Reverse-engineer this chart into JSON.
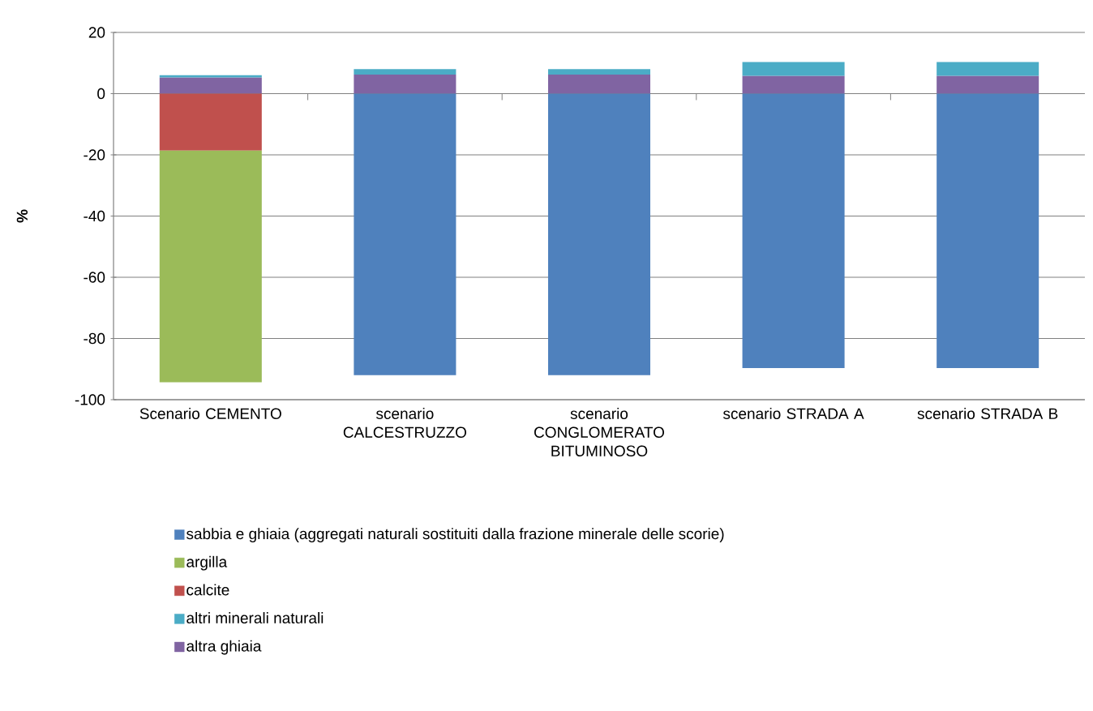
{
  "chart_data": {
    "type": "bar",
    "stacked": true,
    "ylabel": "%",
    "categories": [
      "Scenario CEMENTO",
      "scenario CALCESTRUZZO",
      "scenario CONGLOMERATO BITUMINOSO",
      "scenario STRADA A",
      "scenario STRADA B"
    ],
    "series": [
      {
        "name": "altra ghiaia",
        "color": "#8064a2",
        "values": [
          5.3,
          6.2,
          6.2,
          5.8,
          5.8
        ]
      },
      {
        "name": "altri minerali naturali",
        "color": "#4bacc6",
        "values": [
          0.7,
          1.8,
          1.8,
          4.5,
          4.5
        ]
      },
      {
        "name": "calcite",
        "color": "#c0504d",
        "values": [
          -18.6,
          0,
          0,
          0,
          0
        ]
      },
      {
        "name": "argilla",
        "color": "#9bbb59",
        "values": [
          -75.7,
          0,
          0,
          0,
          0
        ]
      },
      {
        "name": "sabbia e ghiaia (aggregati naturali sostituiti dalla frazione minerale delle scorie)",
        "color": "#4f81bd",
        "values": [
          0,
          -92.0,
          -92.0,
          -89.7,
          -89.7
        ]
      }
    ],
    "ylim": [
      -100,
      20
    ],
    "yticks": [
      -100,
      -80,
      -60,
      -40,
      -20,
      0,
      20
    ],
    "grid": "y",
    "legend": "bottom"
  }
}
